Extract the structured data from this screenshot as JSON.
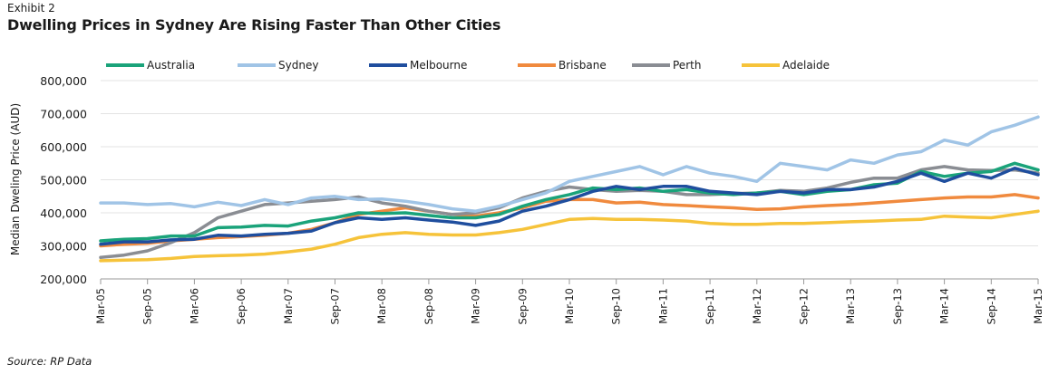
{
  "header": {
    "exhibit": "Exhibit 2",
    "title": "Dwelling Prices in Sydney Are Rising Faster Than Other Cities"
  },
  "footer": {
    "source": "Source: RP Data"
  },
  "chart_data": {
    "type": "line",
    "title": "Dwelling Prices in Sydney Are Rising Faster Than Other Cities",
    "xlabel": "",
    "ylabel": "Median Dweling Price (AUD)",
    "ylim": [
      200000,
      800000
    ],
    "yticks": [
      200000,
      300000,
      400000,
      500000,
      600000,
      700000,
      800000
    ],
    "ytick_labels": [
      "200,000",
      "300,000",
      "400,000",
      "500,000",
      "600,000",
      "700,000",
      "800,000"
    ],
    "grid": true,
    "legend_position": "top",
    "xtick_labels": [
      "Mar-05",
      "Sep-05",
      "Mar-06",
      "Sep-06",
      "Mar-07",
      "Sep-07",
      "Mar-08",
      "Sep-08",
      "Mar-09",
      "Sep-09",
      "Mar-10",
      "Sep-10",
      "Mar-11",
      "Sep-11",
      "Mar-12",
      "Sep-12",
      "Mar-13",
      "Sep-13",
      "Mar-14",
      "Sep-14",
      "Mar-15"
    ],
    "x": [
      "Mar-05",
      "Jun-05",
      "Sep-05",
      "Dec-05",
      "Mar-06",
      "Jun-06",
      "Sep-06",
      "Dec-06",
      "Mar-07",
      "Jun-07",
      "Sep-07",
      "Dec-07",
      "Mar-08",
      "Jun-08",
      "Sep-08",
      "Dec-08",
      "Mar-09",
      "Jun-09",
      "Sep-09",
      "Dec-09",
      "Mar-10",
      "Jun-10",
      "Sep-10",
      "Dec-10",
      "Mar-11",
      "Jun-11",
      "Sep-11",
      "Dec-11",
      "Mar-12",
      "Jun-12",
      "Sep-12",
      "Dec-12",
      "Mar-13",
      "Jun-13",
      "Sep-13",
      "Dec-13",
      "Mar-14",
      "Jun-14",
      "Sep-14",
      "Dec-14",
      "Mar-15"
    ],
    "series": [
      {
        "name": "Australia",
        "color": "#1aa37a",
        "values": [
          315000,
          320000,
          322000,
          330000,
          330000,
          355000,
          357000,
          362000,
          360000,
          375000,
          385000,
          400000,
          398000,
          400000,
          392000,
          385000,
          385000,
          395000,
          420000,
          440000,
          455000,
          475000,
          470000,
          475000,
          465000,
          470000,
          460000,
          455000,
          460000,
          465000,
          455000,
          465000,
          470000,
          485000,
          490000,
          525000,
          510000,
          520000,
          525000,
          550000,
          530000
        ]
      },
      {
        "name": "Sydney",
        "color": "#a0c4e6",
        "values": [
          430000,
          430000,
          425000,
          428000,
          418000,
          432000,
          422000,
          440000,
          425000,
          445000,
          450000,
          440000,
          442000,
          435000,
          425000,
          412000,
          405000,
          420000,
          440000,
          460000,
          495000,
          510000,
          525000,
          540000,
          515000,
          540000,
          520000,
          510000,
          495000,
          550000,
          540000,
          530000,
          560000,
          550000,
          575000,
          585000,
          620000,
          605000,
          645000,
          665000,
          690000
        ]
      },
      {
        "name": "Melbourne",
        "color": "#1f4e9e",
        "values": [
          305000,
          312000,
          312000,
          318000,
          320000,
          332000,
          330000,
          335000,
          338000,
          345000,
          370000,
          385000,
          380000,
          385000,
          378000,
          372000,
          362000,
          375000,
          405000,
          420000,
          440000,
          465000,
          480000,
          470000,
          480000,
          480000,
          465000,
          460000,
          455000,
          465000,
          460000,
          470000,
          470000,
          478000,
          495000,
          520000,
          495000,
          520000,
          505000,
          535000,
          515000
        ]
      },
      {
        "name": "Brisbane",
        "color": "#f08a3e",
        "values": [
          300000,
          305000,
          308000,
          315000,
          320000,
          325000,
          328000,
          332000,
          338000,
          350000,
          370000,
          395000,
          405000,
          415000,
          405000,
          395000,
          390000,
          400000,
          415000,
          435000,
          440000,
          440000,
          430000,
          432000,
          425000,
          422000,
          418000,
          415000,
          410000,
          412000,
          418000,
          422000,
          425000,
          430000,
          435000,
          440000,
          445000,
          448000,
          448000,
          455000,
          445000
        ]
      },
      {
        "name": "Perth",
        "color": "#8a8d93",
        "values": [
          265000,
          272000,
          285000,
          310000,
          340000,
          385000,
          405000,
          425000,
          430000,
          435000,
          440000,
          448000,
          430000,
          420000,
          405000,
          395000,
          400000,
          415000,
          445000,
          465000,
          478000,
          470000,
          465000,
          468000,
          465000,
          455000,
          455000,
          458000,
          460000,
          468000,
          465000,
          475000,
          492000,
          505000,
          505000,
          530000,
          540000,
          530000,
          528000,
          530000,
          520000
        ]
      },
      {
        "name": "Adelaide",
        "color": "#f6c33a",
        "values": [
          255000,
          257000,
          258000,
          262000,
          268000,
          270000,
          272000,
          275000,
          282000,
          290000,
          305000,
          325000,
          335000,
          340000,
          335000,
          333000,
          333000,
          340000,
          350000,
          365000,
          380000,
          383000,
          380000,
          380000,
          378000,
          375000,
          368000,
          365000,
          365000,
          368000,
          368000,
          370000,
          373000,
          375000,
          378000,
          380000,
          390000,
          387000,
          385000,
          395000,
          405000
        ]
      }
    ]
  }
}
